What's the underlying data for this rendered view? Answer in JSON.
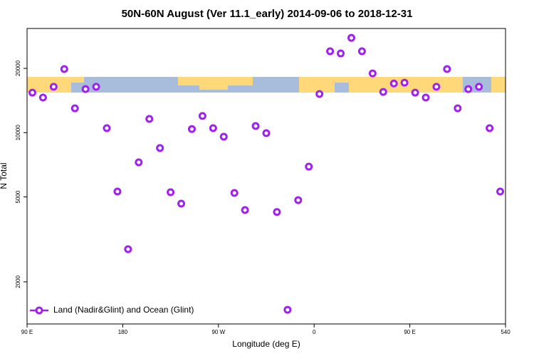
{
  "chart_data": {
    "type": "scatter",
    "title": "50N-60N August (Ver 11.1_early)   2014-09-06 to 2018-12-31",
    "xlabel": "Longitude (deg E)",
    "ylabel": "N Total",
    "xlim": [
      90,
      540
    ],
    "xticks": [
      {
        "value": 90,
        "label": "90 E"
      },
      180,
      {
        "value": 270,
        "label": "90 W"
      },
      {
        "value": 360,
        "label": "0"
      },
      {
        "value": 450,
        "label": "90 E"
      },
      540
    ],
    "ylim": [
      1270,
      30760
    ],
    "yticks": [
      2000,
      5000,
      10000,
      20000
    ],
    "log_y": true,
    "legend": "lower left",
    "series": [
      {
        "name": "Land (Nadir&Glint) and Ocean (Glint)",
        "color": "#a020f0",
        "x": [
          95,
          105,
          115,
          125,
          135,
          145,
          155,
          165,
          175,
          185,
          195,
          205,
          215,
          225,
          235,
          245,
          255,
          265,
          275,
          285,
          295,
          305,
          315,
          325,
          335,
          345,
          355,
          365,
          375,
          385,
          395,
          405,
          415,
          425,
          435,
          445,
          455,
          465,
          475,
          485,
          495,
          505,
          515,
          525,
          535
        ],
        "values": [
          15400,
          14600,
          16400,
          19850,
          13000,
          16000,
          16400,
          10500,
          5300,
          2845,
          7260,
          11600,
          8470,
          5260,
          4650,
          10400,
          11970,
          10500,
          9570,
          5220,
          4340,
          10740,
          9950,
          4250,
          1480,
          4830,
          6930,
          15170,
          24050,
          23500,
          27800,
          24050,
          18950,
          15520,
          17000,
          17140,
          15400,
          14600,
          16400,
          19850,
          13000,
          16000,
          16400,
          10500,
          5300
        ]
      }
    ]
  }
}
